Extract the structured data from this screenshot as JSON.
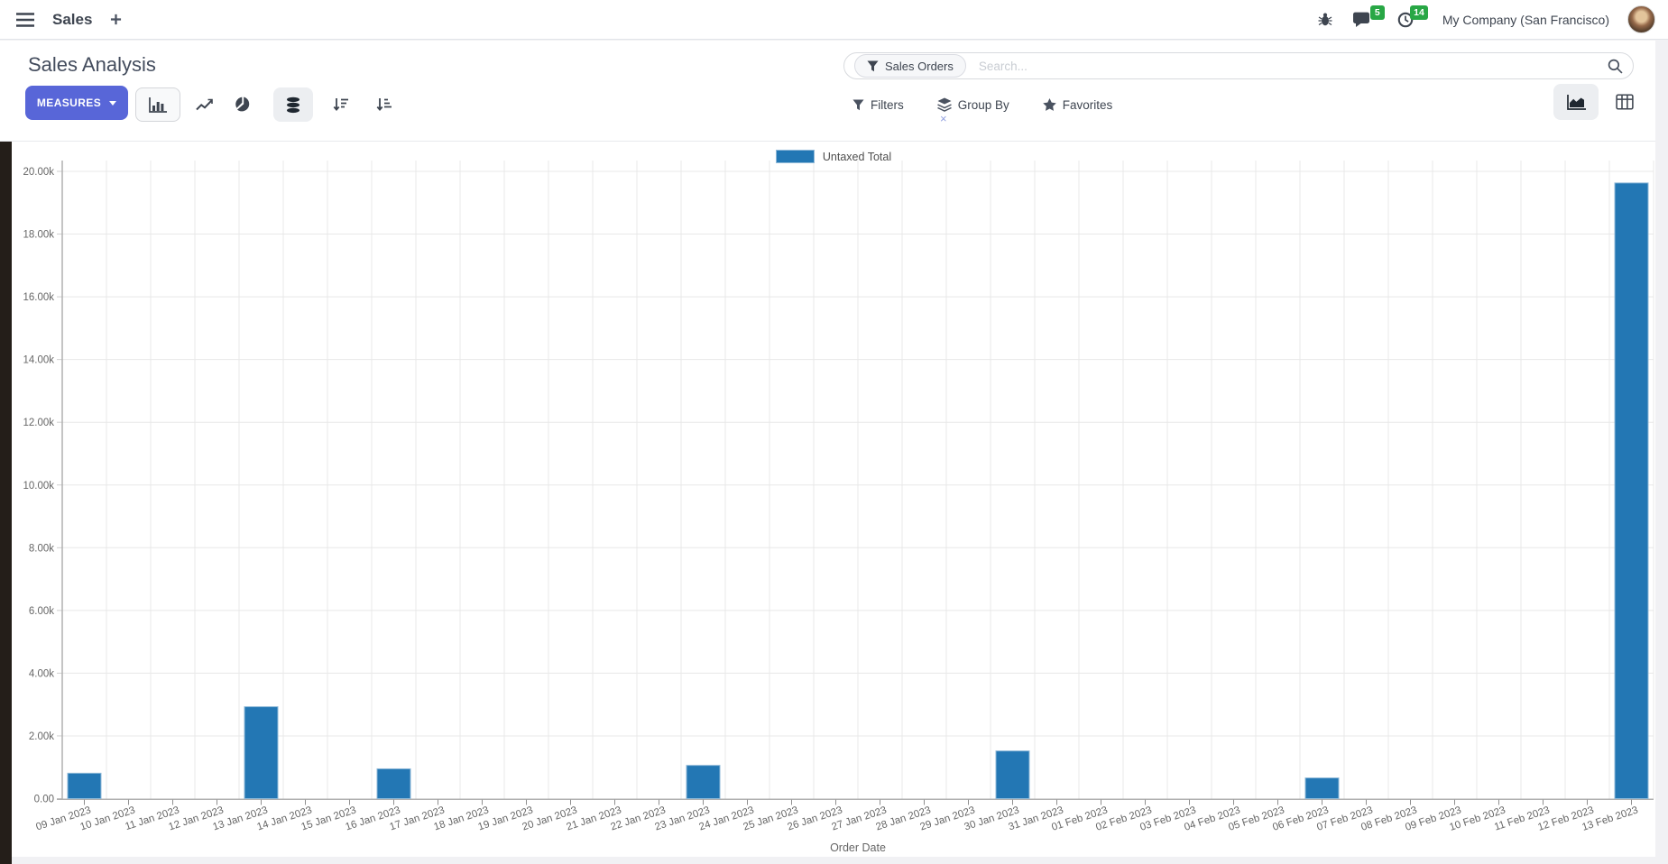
{
  "colors": {
    "accent": "#5866d8",
    "bar": "#2377b4",
    "bar_border": "#8fb9d8",
    "badge_green": "#28a745"
  },
  "navbar": {
    "app_name": "Sales",
    "messages_badge": "5",
    "activities_badge": "14",
    "company": "My Company (San Francisco)"
  },
  "control_panel": {
    "title": "Sales Analysis",
    "measures_label": "MEASURES",
    "search": {
      "facet_label": "Sales Orders",
      "placeholder": "Search...",
      "remove_glyph": "×"
    },
    "filters_label": "Filters",
    "group_by_label": "Group By",
    "favorites_label": "Favorites"
  },
  "icons": {
    "menu": "hamburger",
    "new_tab": "plus",
    "debug": "bug",
    "messages": "chat-bubble",
    "activities": "clock",
    "chart_types": [
      "bar-chart",
      "line-chart",
      "pie-chart"
    ],
    "stacked_toggle": "stacked-discs",
    "sort": [
      "sort-descending",
      "sort-ascending"
    ],
    "search": "magnifier",
    "filters": "funnel",
    "group_by": "layers",
    "favorites": "star",
    "view_switcher": [
      "area-graph",
      "pivot-table"
    ]
  },
  "chart_data": {
    "type": "bar",
    "title": "",
    "xlabel": "Order Date",
    "ylabel": "",
    "ylim": [
      0,
      20000
    ],
    "ytick_step": 2000,
    "ytick_labels": [
      "0.00",
      "2.00k",
      "4.00k",
      "6.00k",
      "8.00k",
      "10.00k",
      "12.00k",
      "14.00k",
      "16.00k",
      "18.00k",
      "20.00k"
    ],
    "grid": true,
    "legend_position": "top",
    "bar_color": "#2377b4",
    "bar_border_color": "#8fb9d8",
    "categories": [
      "09 Jan 2023",
      "10 Jan 2023",
      "11 Jan 2023",
      "12 Jan 2023",
      "13 Jan 2023",
      "14 Jan 2023",
      "15 Jan 2023",
      "16 Jan 2023",
      "17 Jan 2023",
      "18 Jan 2023",
      "19 Jan 2023",
      "20 Jan 2023",
      "21 Jan 2023",
      "22 Jan 2023",
      "23 Jan 2023",
      "24 Jan 2023",
      "25 Jan 2023",
      "26 Jan 2023",
      "27 Jan 2023",
      "28 Jan 2023",
      "29 Jan 2023",
      "30 Jan 2023",
      "31 Jan 2023",
      "01 Feb 2023",
      "02 Feb 2023",
      "03 Feb 2023",
      "04 Feb 2023",
      "05 Feb 2023",
      "06 Feb 2023",
      "07 Feb 2023",
      "08 Feb 2023",
      "09 Feb 2023",
      "10 Feb 2023",
      "11 Feb 2023",
      "12 Feb 2023",
      "13 Feb 2023"
    ],
    "series": [
      {
        "name": "Untaxed Total",
        "values": [
          810,
          0,
          0,
          0,
          2930,
          0,
          0,
          950,
          0,
          0,
          0,
          0,
          0,
          0,
          1060,
          0,
          0,
          0,
          0,
          0,
          0,
          1520,
          0,
          0,
          0,
          0,
          0,
          0,
          660,
          0,
          0,
          0,
          0,
          0,
          0,
          19630
        ]
      }
    ]
  }
}
